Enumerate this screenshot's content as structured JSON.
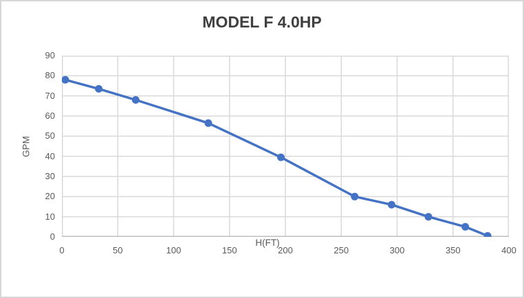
{
  "chart_data": {
    "type": "line",
    "title": "MODEL F 4.0HP",
    "xlabel": "H(FT)",
    "ylabel": "GPM",
    "x": [
      3,
      33,
      66,
      131,
      196,
      262,
      295,
      328,
      361,
      381
    ],
    "series": [
      {
        "name": "GPM",
        "values": [
          78,
          73.5,
          68,
          56.5,
          39.5,
          20,
          16,
          10,
          5,
          0.5
        ]
      }
    ],
    "xlim": [
      0,
      400
    ],
    "ylim": [
      0,
      90
    ],
    "xticks": [
      0,
      50,
      100,
      150,
      200,
      250,
      300,
      350,
      400
    ],
    "yticks": [
      0,
      10,
      20,
      30,
      40,
      50,
      60,
      70,
      80,
      90
    ],
    "grid": true,
    "legend": false,
    "marker": "circle",
    "colors": {
      "line": "#4472C4",
      "marker": "#4472C4",
      "gridline": "#D9D9D9",
      "axis_line": "#BFBFBF",
      "tick_label": "#595959",
      "axis_title": "#595959",
      "title": "#3F3F3F",
      "background": "#FFFFFF",
      "border": "#D7D7D7"
    }
  }
}
